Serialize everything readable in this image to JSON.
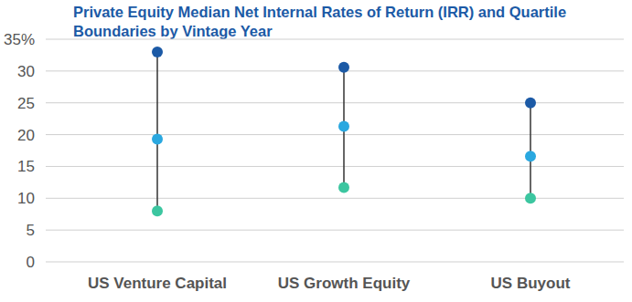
{
  "chart_data": {
    "type": "dot_range",
    "title": "Private Equity Median Net Internal Rates of Return (IRR) and Quartile Boundaries by Vintage Year",
    "categories": [
      "US Venture Capital",
      "US Growth Equity",
      "US Buyout"
    ],
    "series": [
      {
        "color": "#1c5aa6",
        "values": [
          33,
          30.6,
          25
        ]
      },
      {
        "color": "#2aa8e0",
        "values": [
          19.3,
          21.3,
          16.6
        ]
      },
      {
        "color": "#3cc6a0",
        "values": [
          8,
          11.7,
          10
        ]
      }
    ],
    "ylim": [
      0,
      35
    ],
    "yticks": [
      0,
      5,
      10,
      15,
      20,
      25,
      30,
      {
        "value": 35,
        "label": "35%"
      }
    ],
    "grid": true
  }
}
